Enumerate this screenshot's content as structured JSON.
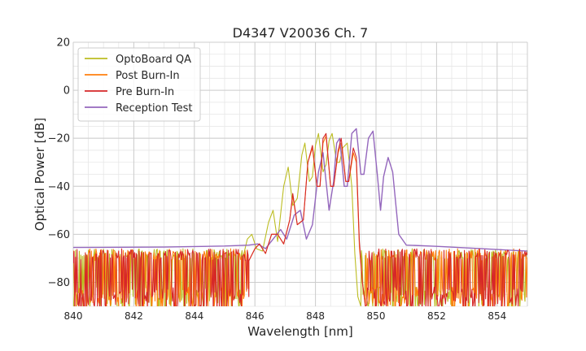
{
  "chart_data": {
    "type": "line",
    "title": "D4347 V20036 Ch. 7",
    "xlabel": "Wavelength [nm]",
    "ylabel": "Optical Power [dB]",
    "xlim": [
      840,
      855
    ],
    "ylim": [
      -90,
      20
    ],
    "xticks": [
      840,
      842,
      844,
      846,
      848,
      850,
      852,
      854
    ],
    "yticks": [
      20,
      0,
      -20,
      -40,
      -60,
      -80
    ],
    "grid": true,
    "minor_x_step": 0.5,
    "minor_y_step": 5,
    "legend_position": "top-left",
    "series": [
      {
        "name": "OptoBoard QA",
        "color": "#bcbd22",
        "noise_floor": true,
        "points": [
          [
            845.6,
            -70
          ],
          [
            845.75,
            -62
          ],
          [
            845.9,
            -60
          ],
          [
            846.05,
            -66
          ],
          [
            846.25,
            -67
          ],
          [
            846.45,
            -55
          ],
          [
            846.6,
            -50
          ],
          [
            846.75,
            -63
          ],
          [
            846.95,
            -40
          ],
          [
            847.1,
            -32
          ],
          [
            847.25,
            -48
          ],
          [
            847.4,
            -45
          ],
          [
            847.55,
            -27
          ],
          [
            847.65,
            -22
          ],
          [
            847.8,
            -38
          ],
          [
            847.9,
            -36
          ],
          [
            848.0,
            -23
          ],
          [
            848.1,
            -18
          ],
          [
            848.25,
            -34
          ],
          [
            848.35,
            -31
          ],
          [
            848.45,
            -21
          ],
          [
            848.55,
            -18
          ],
          [
            848.7,
            -30
          ],
          [
            848.8,
            -30
          ],
          [
            848.9,
            -24
          ],
          [
            849.05,
            -22
          ],
          [
            849.2,
            -40
          ],
          [
            849.3,
            -68
          ],
          [
            849.4,
            -86
          ],
          [
            849.5,
            -90
          ]
        ]
      },
      {
        "name": "Post Burn-In",
        "color": "#ff7f0e",
        "noise_floor": true,
        "points": [
          [
            845.8,
            -71
          ],
          [
            846.0,
            -66
          ],
          [
            846.15,
            -64
          ],
          [
            846.35,
            -68
          ],
          [
            846.55,
            -60
          ],
          [
            846.75,
            -60
          ],
          [
            846.95,
            -64
          ],
          [
            847.15,
            -54
          ],
          [
            847.25,
            -44
          ],
          [
            847.4,
            -56
          ],
          [
            847.6,
            -54
          ],
          [
            847.75,
            -30
          ],
          [
            847.9,
            -24
          ],
          [
            848.05,
            -40
          ],
          [
            848.15,
            -40
          ],
          [
            848.25,
            -22
          ],
          [
            848.35,
            -19
          ],
          [
            848.5,
            -40
          ],
          [
            848.6,
            -40
          ],
          [
            848.75,
            -26
          ],
          [
            848.85,
            -22
          ],
          [
            849.0,
            -38
          ],
          [
            849.1,
            -38
          ],
          [
            849.25,
            -26
          ],
          [
            849.35,
            -30
          ],
          [
            849.45,
            -65
          ],
          [
            849.55,
            -80
          ],
          [
            849.65,
            -90
          ]
        ]
      },
      {
        "name": "Pre Burn-In",
        "color": "#d62728",
        "noise_floor": true,
        "points": [
          [
            845.8,
            -71
          ],
          [
            846.0,
            -66
          ],
          [
            846.15,
            -64
          ],
          [
            846.35,
            -68
          ],
          [
            846.55,
            -60
          ],
          [
            846.75,
            -60
          ],
          [
            846.95,
            -64
          ],
          [
            847.15,
            -54
          ],
          [
            847.25,
            -43
          ],
          [
            847.4,
            -56
          ],
          [
            847.6,
            -54
          ],
          [
            847.75,
            -30
          ],
          [
            847.9,
            -23
          ],
          [
            848.05,
            -40
          ],
          [
            848.15,
            -40
          ],
          [
            848.25,
            -20
          ],
          [
            848.35,
            -18
          ],
          [
            848.5,
            -40
          ],
          [
            848.6,
            -40
          ],
          [
            848.75,
            -25
          ],
          [
            848.85,
            -20
          ],
          [
            849.0,
            -38
          ],
          [
            849.1,
            -38
          ],
          [
            849.25,
            -24
          ],
          [
            849.35,
            -28
          ],
          [
            849.45,
            -63
          ],
          [
            849.55,
            -80
          ],
          [
            849.65,
            -90
          ]
        ]
      },
      {
        "name": "Reception Test",
        "color": "#9467bd",
        "noise_floor": false,
        "points": [
          [
            840.0,
            -65.5
          ],
          [
            843.0,
            -65.3
          ],
          [
            845.0,
            -64.9
          ],
          [
            845.8,
            -64.5
          ],
          [
            846.1,
            -64
          ],
          [
            846.35,
            -66
          ],
          [
            846.6,
            -62
          ],
          [
            846.85,
            -58
          ],
          [
            847.05,
            -62
          ],
          [
            847.3,
            -52
          ],
          [
            847.5,
            -50
          ],
          [
            847.7,
            -62
          ],
          [
            847.9,
            -56
          ],
          [
            848.1,
            -34
          ],
          [
            848.25,
            -26
          ],
          [
            848.45,
            -50
          ],
          [
            848.6,
            -38
          ],
          [
            848.7,
            -22
          ],
          [
            848.8,
            -20
          ],
          [
            848.95,
            -40
          ],
          [
            849.05,
            -40
          ],
          [
            849.2,
            -18
          ],
          [
            849.35,
            -16
          ],
          [
            849.5,
            -35
          ],
          [
            849.6,
            -35
          ],
          [
            849.75,
            -20
          ],
          [
            849.9,
            -17
          ],
          [
            850.05,
            -36
          ],
          [
            850.15,
            -50
          ],
          [
            850.25,
            -36
          ],
          [
            850.4,
            -28
          ],
          [
            850.55,
            -34
          ],
          [
            850.75,
            -60
          ],
          [
            851.0,
            -64.5
          ],
          [
            852.0,
            -65
          ],
          [
            853.5,
            -66
          ],
          [
            855.0,
            -67
          ]
        ]
      }
    ]
  }
}
